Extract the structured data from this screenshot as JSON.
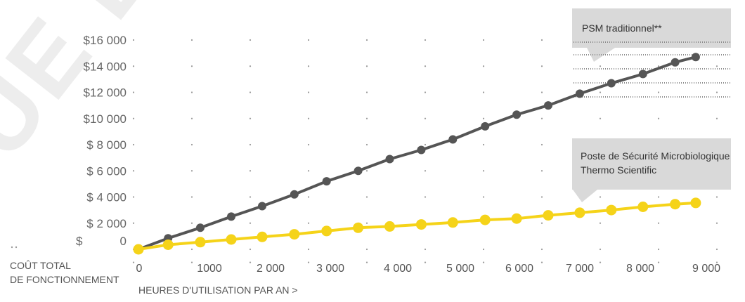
{
  "chart_data": {
    "type": "line",
    "y_ticks": [
      "$16 000",
      "$14 000",
      "$12 000",
      "$10 000",
      "$ 8 000",
      "$ 6 000",
      "$ 4 000",
      "$ 2 000",
      "$",
      "0"
    ],
    "x_ticks": [
      "0",
      "1000",
      "2 000",
      "3 000",
      "4 000",
      "5 000",
      "6 000",
      "7 000",
      "8 000",
      "9 000"
    ],
    "ylim": [
      0,
      16000
    ],
    "xlim": [
      0,
      9000
    ],
    "ylabel_lines": [
      "COÛT TOTAL",
      "DE FONCTIONNEMENT"
    ],
    "xlabel": "HEURES D'UTILISATION PAR AN >",
    "grid": "dotted",
    "series": [
      {
        "name": "PSM traditionnel**",
        "color": "#555555",
        "x": [
          0,
          460,
          960,
          1440,
          1920,
          2420,
          2920,
          3410,
          3900,
          4390,
          4880,
          5380,
          5870,
          6360,
          6850,
          7340,
          7830,
          8330,
          8650
        ],
        "y": [
          0,
          850,
          1650,
          2500,
          3300,
          4200,
          5200,
          6000,
          6900,
          7600,
          8400,
          9400,
          10300,
          11000,
          11900,
          12700,
          13400,
          14300,
          14700
        ]
      },
      {
        "name": "Poste de Sécurité Microbiologique Thermo Scientific",
        "color": "#f5d319",
        "x": [
          0,
          460,
          960,
          1440,
          1920,
          2420,
          2920,
          3410,
          3900,
          4390,
          4880,
          5380,
          5870,
          6360,
          6850,
          7340,
          7830,
          8330,
          8650
        ],
        "y": [
          0,
          350,
          550,
          750,
          950,
          1150,
          1400,
          1650,
          1750,
          1900,
          2050,
          2250,
          2350,
          2600,
          2800,
          3000,
          3250,
          3450,
          3550
        ]
      }
    ],
    "annotations": [
      {
        "series": "PSM traditionnel**",
        "lines": [
          "PSM traditionnel**"
        ]
      },
      {
        "series": "Poste de Sécurité Microbiologique Thermo Scientific",
        "lines": [
          "Poste de Sécurité Microbiologique",
          "Thermo Scientific"
        ]
      }
    ],
    "watermark": "JUE DU"
  }
}
